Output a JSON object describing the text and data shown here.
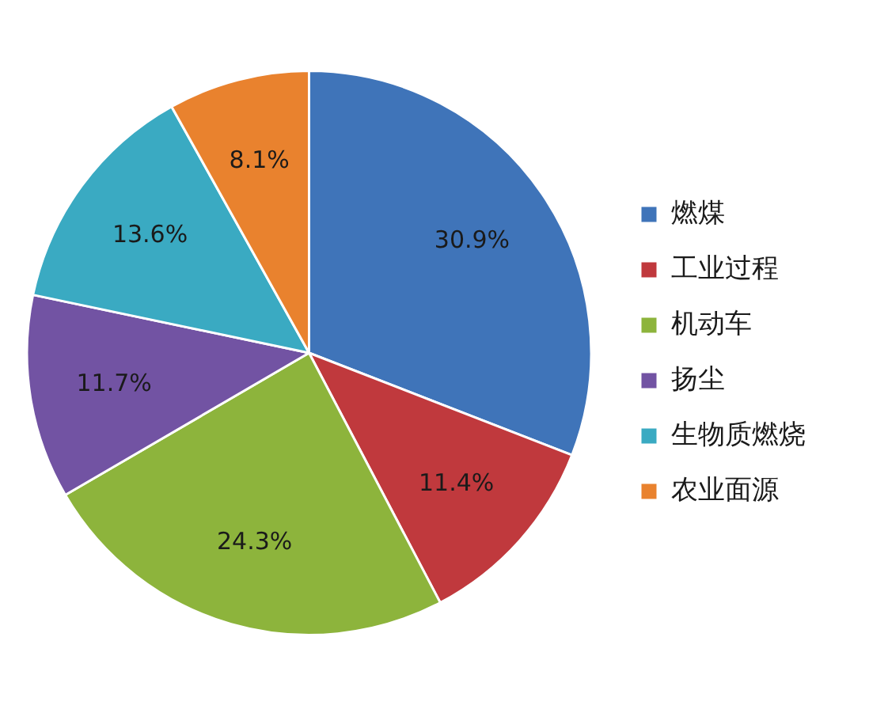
{
  "chart_data": {
    "type": "pie",
    "categories": [
      "燃煤",
      "工业过程",
      "机动车",
      "扬尘",
      "生物质燃烧",
      "农业面源"
    ],
    "values": [
      30.9,
      11.4,
      24.3,
      11.7,
      13.6,
      8.1
    ],
    "colors": [
      "#3f74b9",
      "#c0393d",
      "#8db43c",
      "#7253a3",
      "#3aaac2",
      "#e9822e"
    ],
    "value_labels": [
      "30.9%",
      "11.4%",
      "24.3%",
      "11.7%",
      "13.6%",
      "8.1%"
    ],
    "legend": "right"
  }
}
